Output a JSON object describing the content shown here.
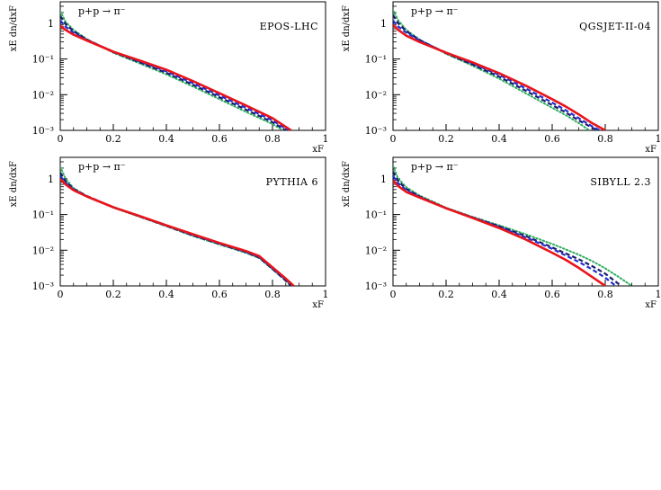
{
  "colors": {
    "red_solid": "#e8141b",
    "blue_dashed": "#1f2fd0",
    "navy_dashed": "#1a1a6e",
    "green_dotted": "#2fae5f"
  },
  "chart_data": [
    {
      "type": "line",
      "model": "EPOS-LHC",
      "reaction": "p+p → π⁻",
      "xlabel": "xF",
      "ylabel": "xE dn/dxF",
      "xlim": [
        0,
        1
      ],
      "ylim": [
        0.001,
        4
      ],
      "yscale": "log",
      "xticks": [
        "0",
        "0.2",
        "0.4",
        "0.6",
        "0.8",
        "1"
      ],
      "yticks": [
        "10⁻³",
        "10⁻²",
        "10⁻¹",
        "1"
      ],
      "series": [
        {
          "style": "solid",
          "color": "#e8141b",
          "x": [
            0,
            0.02,
            0.05,
            0.1,
            0.2,
            0.3,
            0.4,
            0.5,
            0.6,
            0.7,
            0.8,
            0.87
          ],
          "y": [
            0.85,
            0.65,
            0.48,
            0.33,
            0.16,
            0.09,
            0.05,
            0.024,
            0.011,
            0.005,
            0.0022,
            0.001
          ]
        },
        {
          "style": "dashed",
          "color": "#1f2fd0",
          "x": [
            0,
            0.02,
            0.05,
            0.1,
            0.2,
            0.3,
            0.4,
            0.5,
            0.6,
            0.7,
            0.8,
            0.86
          ],
          "y": [
            1.2,
            0.8,
            0.55,
            0.34,
            0.16,
            0.085,
            0.045,
            0.021,
            0.0095,
            0.0043,
            0.0019,
            0.001
          ]
        },
        {
          "style": "dashed",
          "color": "#1a1a6e",
          "x": [
            0,
            0.02,
            0.05,
            0.1,
            0.2,
            0.3,
            0.4,
            0.5,
            0.6,
            0.7,
            0.8,
            0.85
          ],
          "y": [
            1.6,
            0.95,
            0.6,
            0.35,
            0.155,
            0.08,
            0.041,
            0.019,
            0.0085,
            0.0038,
            0.0017,
            0.001
          ]
        },
        {
          "style": "dotted",
          "color": "#2fae5f",
          "x": [
            0,
            0.02,
            0.05,
            0.1,
            0.2,
            0.3,
            0.4,
            0.5,
            0.6,
            0.7,
            0.8,
            0.84
          ],
          "y": [
            2.2,
            1.1,
            0.65,
            0.36,
            0.15,
            0.075,
            0.037,
            0.017,
            0.0075,
            0.0033,
            0.0015,
            0.001
          ]
        }
      ]
    },
    {
      "type": "line",
      "model": "QGSJET-II-04",
      "reaction": "p+p → π⁻",
      "xlabel": "xF",
      "ylabel": "xE dn/dxF",
      "xlim": [
        0,
        1
      ],
      "ylim": [
        0.001,
        4
      ],
      "yscale": "log",
      "xticks": [
        "0",
        "0.2",
        "0.4",
        "0.6",
        "0.8",
        "1"
      ],
      "yticks": [
        "10⁻³",
        "10⁻²",
        "10⁻¹",
        "1"
      ],
      "series": [
        {
          "style": "solid",
          "color": "#e8141b",
          "x": [
            0,
            0.02,
            0.05,
            0.1,
            0.2,
            0.3,
            0.4,
            0.5,
            0.6,
            0.65,
            0.7,
            0.75,
            0.8
          ],
          "y": [
            0.9,
            0.65,
            0.45,
            0.3,
            0.15,
            0.08,
            0.04,
            0.018,
            0.0075,
            0.0047,
            0.0028,
            0.0016,
            0.001
          ]
        },
        {
          "style": "dashed",
          "color": "#1f2fd0",
          "x": [
            0,
            0.02,
            0.05,
            0.1,
            0.2,
            0.3,
            0.4,
            0.5,
            0.6,
            0.65,
            0.7,
            0.75,
            0.78
          ],
          "y": [
            1.2,
            0.8,
            0.55,
            0.33,
            0.15,
            0.075,
            0.036,
            0.015,
            0.006,
            0.0037,
            0.0022,
            0.0013,
            0.001
          ]
        },
        {
          "style": "dashed",
          "color": "#1a1a6e",
          "x": [
            0,
            0.02,
            0.05,
            0.1,
            0.2,
            0.3,
            0.4,
            0.5,
            0.6,
            0.65,
            0.7,
            0.75,
            0.77
          ],
          "y": [
            1.7,
            1.0,
            0.6,
            0.34,
            0.145,
            0.07,
            0.032,
            0.013,
            0.0051,
            0.0032,
            0.0019,
            0.0012,
            0.001
          ]
        },
        {
          "style": "dotted",
          "color": "#2fae5f",
          "x": [
            0,
            0.02,
            0.05,
            0.1,
            0.2,
            0.3,
            0.4,
            0.5,
            0.6,
            0.65,
            0.7,
            0.74
          ],
          "y": [
            2.3,
            1.2,
            0.65,
            0.35,
            0.14,
            0.065,
            0.028,
            0.011,
            0.0043,
            0.0027,
            0.0016,
            0.001
          ]
        }
      ]
    },
    {
      "type": "line",
      "model": "PYTHIA 6",
      "reaction": "p+p → π⁻",
      "xlabel": "xF",
      "ylabel": "xE dn/dxF",
      "xlim": [
        0,
        1
      ],
      "ylim": [
        0.001,
        4
      ],
      "yscale": "log",
      "xticks": [
        "0",
        "0.2",
        "0.4",
        "0.6",
        "0.8",
        "1"
      ],
      "yticks": [
        "10⁻³",
        "10⁻²",
        "10⁻¹",
        "1"
      ],
      "series": [
        {
          "style": "solid",
          "color": "#e8141b",
          "x": [
            0,
            0.02,
            0.05,
            0.1,
            0.2,
            0.3,
            0.4,
            0.5,
            0.6,
            0.7,
            0.75,
            0.8,
            0.85,
            0.88
          ],
          "y": [
            1.0,
            0.7,
            0.48,
            0.32,
            0.16,
            0.09,
            0.05,
            0.028,
            0.016,
            0.0095,
            0.0068,
            0.0033,
            0.0016,
            0.001
          ]
        },
        {
          "style": "dashed",
          "color": "#1f2fd0",
          "x": [
            0,
            0.02,
            0.05,
            0.1,
            0.2,
            0.3,
            0.4,
            0.5,
            0.6,
            0.7,
            0.75,
            0.8,
            0.85,
            0.88
          ],
          "y": [
            1.2,
            0.78,
            0.5,
            0.32,
            0.16,
            0.089,
            0.049,
            0.027,
            0.0155,
            0.009,
            0.0064,
            0.0031,
            0.0015,
            0.001
          ]
        },
        {
          "style": "dashed",
          "color": "#1a1a6e",
          "x": [
            0,
            0.02,
            0.05,
            0.1,
            0.2,
            0.3,
            0.4,
            0.5,
            0.6,
            0.7,
            0.75,
            0.8,
            0.85,
            0.87
          ],
          "y": [
            1.5,
            0.85,
            0.52,
            0.33,
            0.16,
            0.088,
            0.048,
            0.026,
            0.015,
            0.0088,
            0.0062,
            0.003,
            0.0014,
            0.001
          ]
        },
        {
          "style": "dotted",
          "color": "#2fae5f",
          "x": [
            0,
            0.02,
            0.05,
            0.1,
            0.2,
            0.3,
            0.4,
            0.5,
            0.6,
            0.7,
            0.75,
            0.8,
            0.85,
            0.87
          ],
          "y": [
            2.2,
            1.0,
            0.55,
            0.33,
            0.155,
            0.086,
            0.047,
            0.025,
            0.0145,
            0.0084,
            0.006,
            0.0029,
            0.0014,
            0.001
          ]
        }
      ]
    },
    {
      "type": "line",
      "model": "SIBYLL 2.3",
      "reaction": "p+p → π⁻",
      "xlabel": "xF",
      "ylabel": "xE dn/dxF",
      "xlim": [
        0,
        1
      ],
      "ylim": [
        0.001,
        4
      ],
      "yscale": "log",
      "xticks": [
        "0",
        "0.2",
        "0.4",
        "0.6",
        "0.8",
        "1"
      ],
      "yticks": [
        "10⁻³",
        "10⁻²",
        "10⁻¹",
        "1"
      ],
      "series": [
        {
          "style": "solid",
          "color": "#e8141b",
          "x": [
            0,
            0.02,
            0.05,
            0.1,
            0.2,
            0.3,
            0.4,
            0.5,
            0.6,
            0.65,
            0.7,
            0.75,
            0.8
          ],
          "y": [
            0.9,
            0.62,
            0.43,
            0.3,
            0.15,
            0.08,
            0.042,
            0.02,
            0.0085,
            0.0054,
            0.0032,
            0.0018,
            0.001
          ]
        },
        {
          "style": "dashed",
          "color": "#1f2fd0",
          "x": [
            0,
            0.02,
            0.05,
            0.1,
            0.2,
            0.3,
            0.4,
            0.5,
            0.6,
            0.7,
            0.75,
            0.8,
            0.84
          ],
          "y": [
            1.2,
            0.75,
            0.48,
            0.31,
            0.15,
            0.082,
            0.045,
            0.023,
            0.011,
            0.0047,
            0.0029,
            0.0017,
            0.001
          ]
        },
        {
          "style": "dashed",
          "color": "#1a1a6e",
          "x": [
            0,
            0.02,
            0.05,
            0.1,
            0.2,
            0.3,
            0.4,
            0.5,
            0.6,
            0.7,
            0.75,
            0.8,
            0.86
          ],
          "y": [
            1.6,
            0.85,
            0.52,
            0.32,
            0.15,
            0.083,
            0.047,
            0.025,
            0.012,
            0.0056,
            0.0036,
            0.0022,
            0.001
          ]
        },
        {
          "style": "dotted",
          "color": "#2fae5f",
          "x": [
            0,
            0.02,
            0.05,
            0.1,
            0.2,
            0.3,
            0.4,
            0.5,
            0.6,
            0.7,
            0.75,
            0.8,
            0.85,
            0.9
          ],
          "y": [
            2.3,
            1.0,
            0.58,
            0.34,
            0.155,
            0.086,
            0.05,
            0.028,
            0.015,
            0.0075,
            0.005,
            0.0031,
            0.0018,
            0.001
          ]
        }
      ]
    }
  ]
}
